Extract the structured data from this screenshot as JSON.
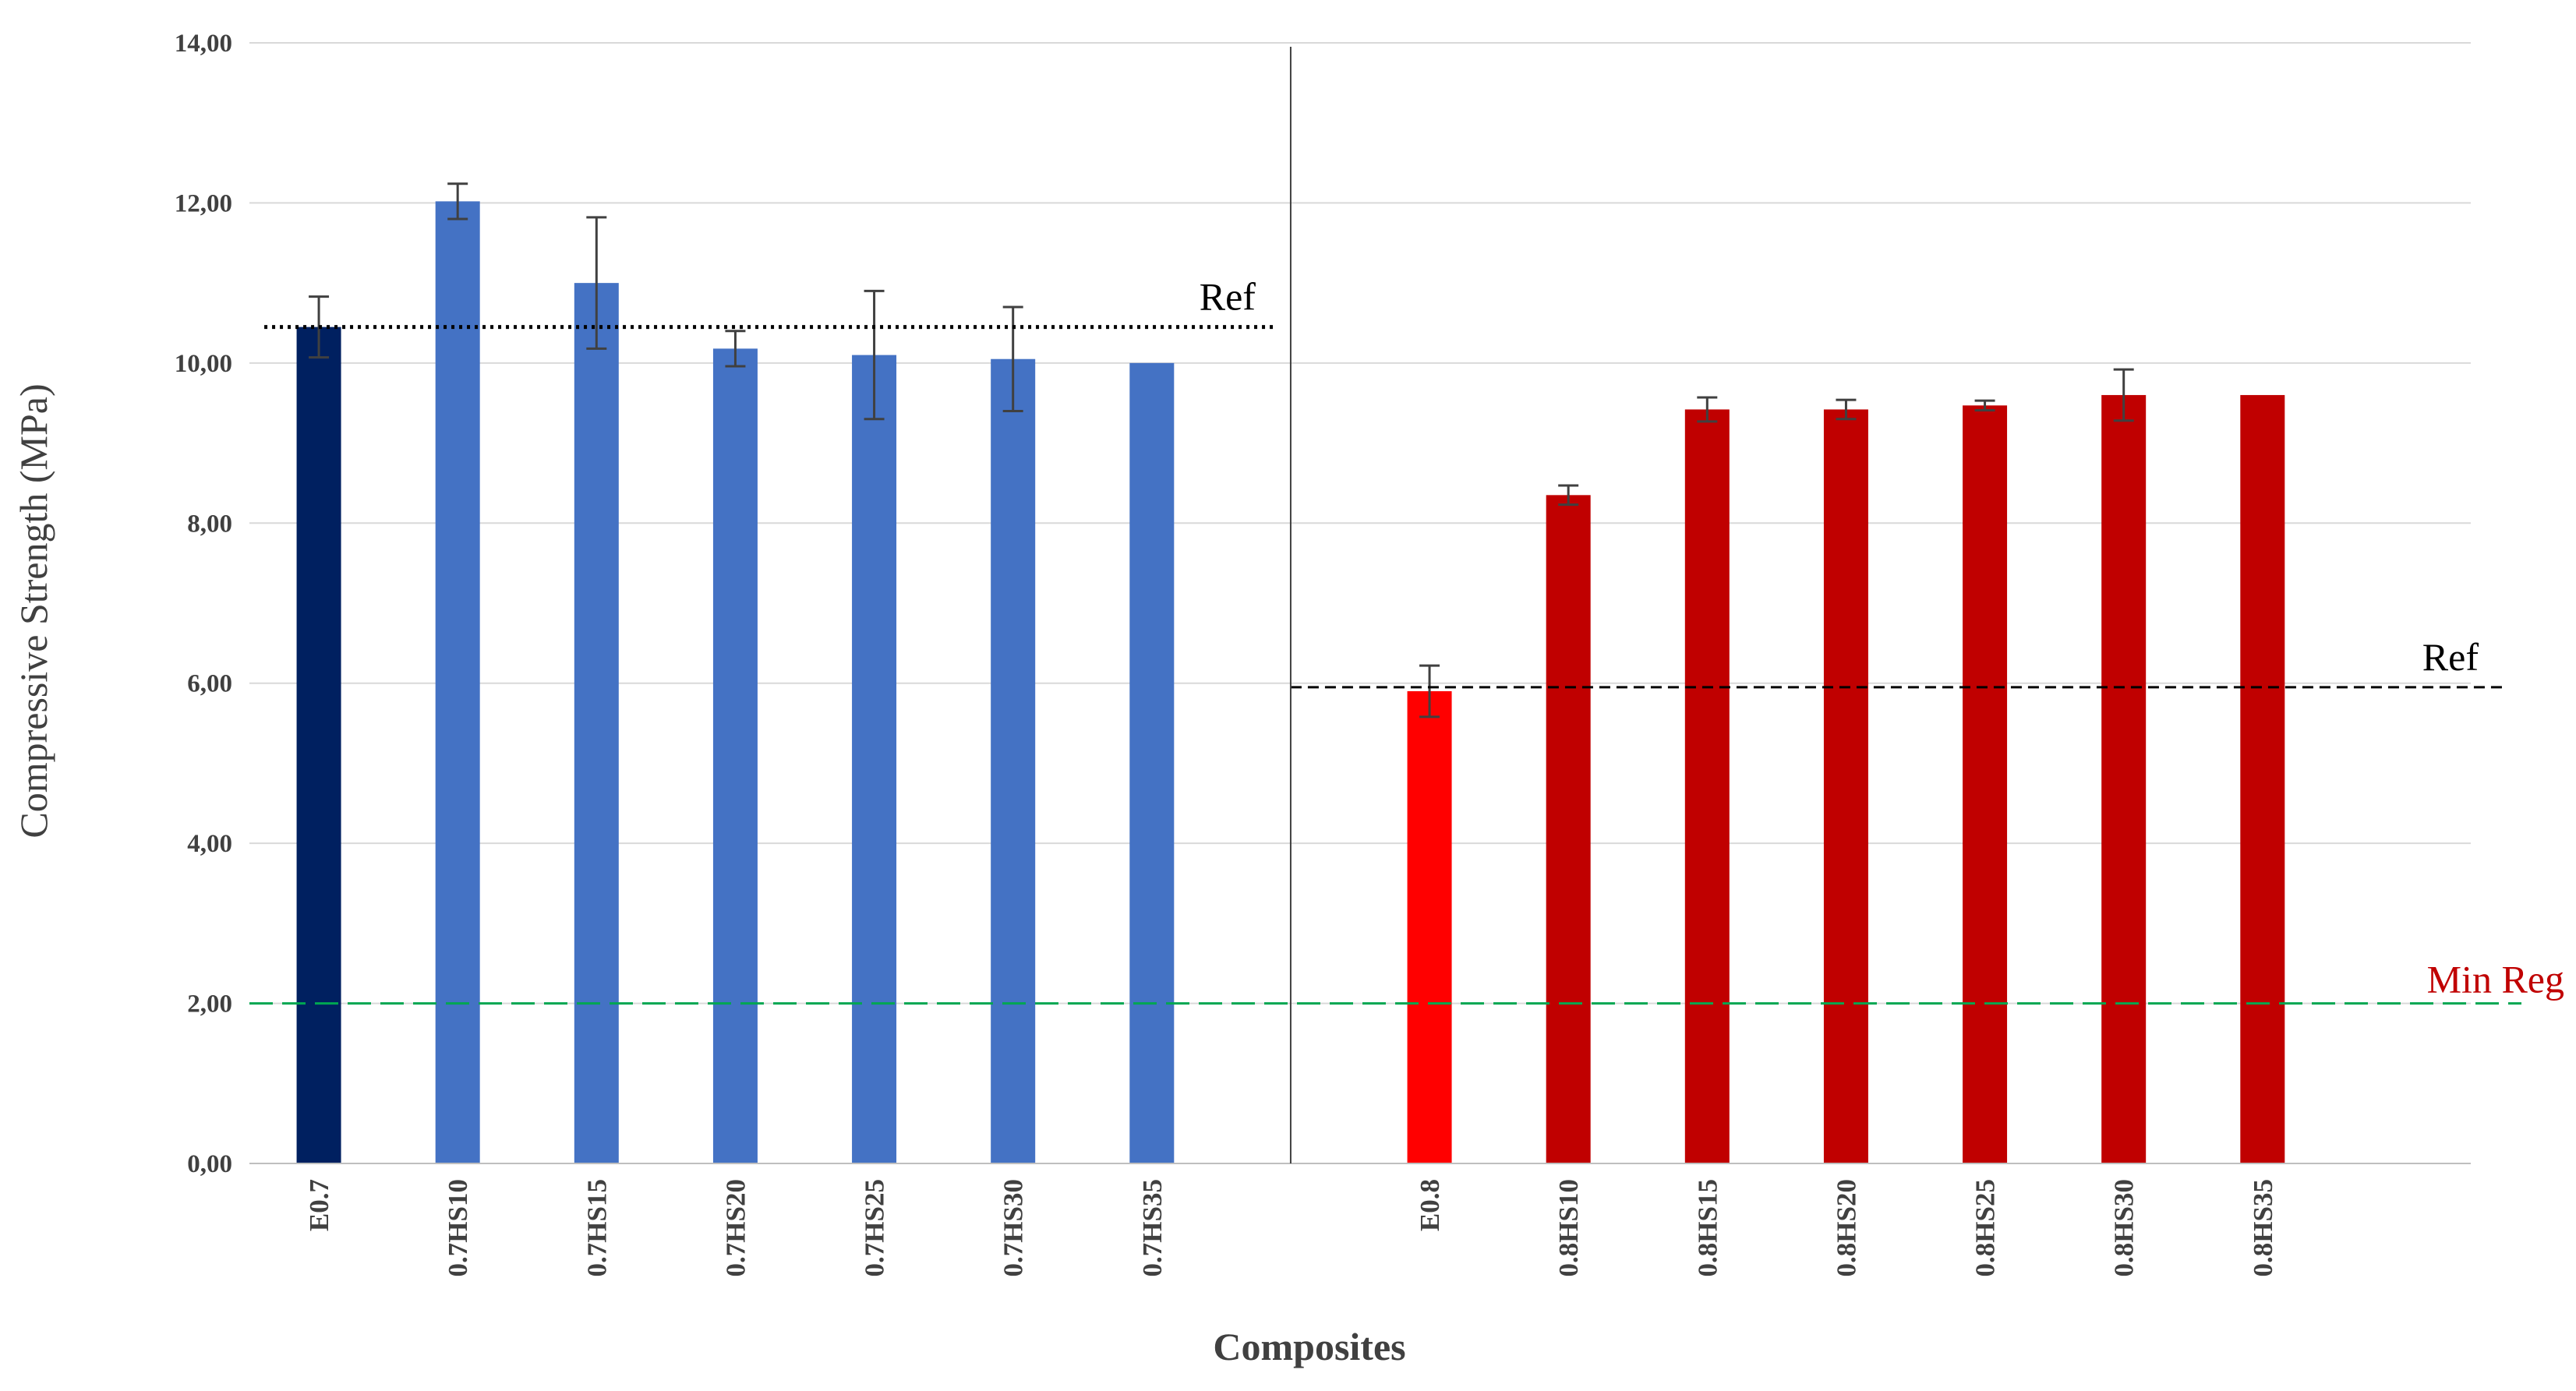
{
  "chart_data": {
    "type": "bar",
    "title": "",
    "xlabel": "Composites",
    "ylabel": "Compressive Strength (MPa)",
    "ylim": [
      0,
      14
    ],
    "y_ticks": [
      "0,00",
      "2,00",
      "4,00",
      "6,00",
      "8,00",
      "10,00",
      "12,00",
      "14,00"
    ],
    "y_tick_values": [
      0,
      2,
      4,
      6,
      8,
      10,
      12,
      14
    ],
    "grid": true,
    "categories": [
      "E0.7",
      "0.7HS10",
      "0.7HS15",
      "0.7HS20",
      "0.7HS25",
      "0.7HS30",
      "0.7HS35",
      "",
      "E0.8",
      "0.8HS10",
      "0.8HS15",
      "0.8HS20",
      "0.8HS25",
      "0.8HS30",
      "0.8HS35",
      ""
    ],
    "values": [
      10.45,
      12.02,
      11.0,
      10.18,
      10.1,
      10.05,
      10.0,
      null,
      5.9,
      8.35,
      9.42,
      9.42,
      9.47,
      9.6,
      9.6,
      null
    ],
    "errors": [
      0.38,
      0.22,
      0.82,
      0.22,
      0.8,
      0.65,
      null,
      null,
      0.32,
      0.12,
      0.15,
      0.12,
      0.06,
      0.32,
      null,
      null
    ],
    "colors": [
      "#002060",
      "#4472C4",
      "#4472C4",
      "#4472C4",
      "#4472C4",
      "#4472C4",
      "#4472C4",
      "",
      "#FF0000",
      "#C00000",
      "#C00000",
      "#C00000",
      "#C00000",
      "#C00000",
      "#C00000",
      ""
    ],
    "reference_lines": [
      {
        "label": "Ref",
        "value": 10.45,
        "from_category": 0,
        "to_category": 7,
        "style": "dotted",
        "color": "#000000"
      },
      {
        "label": "Ref",
        "value": 5.95,
        "from_category": 7,
        "to_category": 16,
        "style": "dashed",
        "color": "#000000"
      },
      {
        "label": "Min Reg",
        "value": 2.0,
        "from_category": 0,
        "to_category": 16,
        "style": "long-dashed",
        "color": "#00A651",
        "label_color": "#C00000"
      }
    ],
    "separator_after_category": 7,
    "error_bar_color": "#404040",
    "gridline_color": "#D9D9D9"
  }
}
